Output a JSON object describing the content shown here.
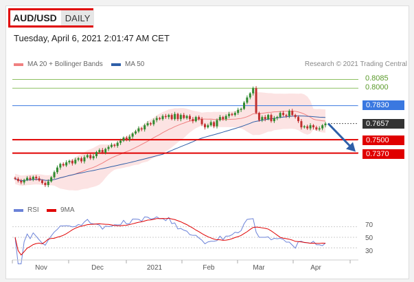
{
  "header": {
    "symbol": "AUD/USD",
    "period": "DAILY",
    "datetime": "Tuesday, April 6, 2021 2:01:47 AM CET",
    "credit": "Research © 2021 Trading Central"
  },
  "colors": {
    "bollinger": "#f08080",
    "ma50": "#2e5fa8",
    "green_level": "#8cc060",
    "blue_level": "#3a78e0",
    "red_level": "#e00000",
    "last_price": "#333333",
    "rsi": "#6b82d8",
    "rsi_ma": "#e00000",
    "candle_up": "#2f8a2f",
    "candle_down": "#c03030",
    "forecast_arrow": "#2e5fa8"
  },
  "chart_data": [
    {
      "type": "candlestick",
      "title": "AUD/USD",
      "legend": [
        {
          "name": "MA 20 + Bollinger Bands",
          "color": "#f08080"
        },
        {
          "name": "MA 50",
          "color": "#2e5fa8"
        }
      ],
      "ylim": [
        0.692,
        0.8135
      ],
      "x_ticks": [
        "Nov",
        "Dec",
        "2021",
        "Feb",
        "Mar",
        "Apr"
      ],
      "levels": [
        {
          "value": 0.8085,
          "label": "0.8085",
          "style": "plain",
          "color": "#8cc060"
        },
        {
          "value": 0.8,
          "label": "0.8000",
          "style": "plain",
          "color": "#8cc060"
        },
        {
          "value": 0.783,
          "label": "0.7830",
          "style": "tag",
          "color": "#3a78e0"
        },
        {
          "value": 0.7657,
          "label": "0.7657",
          "style": "last",
          "color": "#333333"
        },
        {
          "value": 0.75,
          "label": "0.7500",
          "style": "tag",
          "color": "#e00000"
        },
        {
          "value": 0.737,
          "label": "0.7370",
          "style": "tag",
          "color": "#e00000"
        }
      ],
      "close": [
        0.712,
        0.71,
        0.7085,
        0.711,
        0.713,
        0.7115,
        0.714,
        0.7125,
        0.7105,
        0.708,
        0.706,
        0.7095,
        0.7135,
        0.7185,
        0.723,
        0.7265,
        0.725,
        0.728,
        0.7295,
        0.727,
        0.7305,
        0.732,
        0.729,
        0.733,
        0.735,
        0.732,
        0.734,
        0.738,
        0.74,
        0.7375,
        0.741,
        0.743,
        0.745,
        0.744,
        0.747,
        0.749,
        0.752,
        0.75,
        0.753,
        0.756,
        0.758,
        0.761,
        0.76,
        0.764,
        0.766,
        0.765,
        0.769,
        0.771,
        0.77,
        0.773,
        0.772,
        0.774,
        0.77,
        0.775,
        0.77,
        0.774,
        0.771,
        0.773,
        0.77,
        0.768,
        0.772,
        0.77,
        0.765,
        0.762,
        0.764,
        0.767,
        0.763,
        0.769,
        0.772,
        0.77,
        0.773,
        0.775,
        0.774,
        0.776,
        0.779,
        0.78,
        0.786,
        0.791,
        0.795,
        0.8,
        0.776,
        0.769,
        0.772,
        0.77,
        0.774,
        0.768,
        0.771,
        0.772,
        0.776,
        0.774,
        0.773,
        0.778,
        0.774,
        0.772,
        0.768,
        0.762,
        0.763,
        0.761,
        0.764,
        0.762,
        0.76,
        0.761,
        0.764,
        0.7657
      ]
    },
    {
      "type": "line",
      "title": "RSI",
      "legend": [
        {
          "name": "RSI",
          "color": "#6b82d8"
        },
        {
          "name": "9MA",
          "color": "#e00000"
        }
      ],
      "y_ticks": [
        70,
        50,
        30
      ],
      "ylim": [
        15,
        85
      ]
    }
  ]
}
